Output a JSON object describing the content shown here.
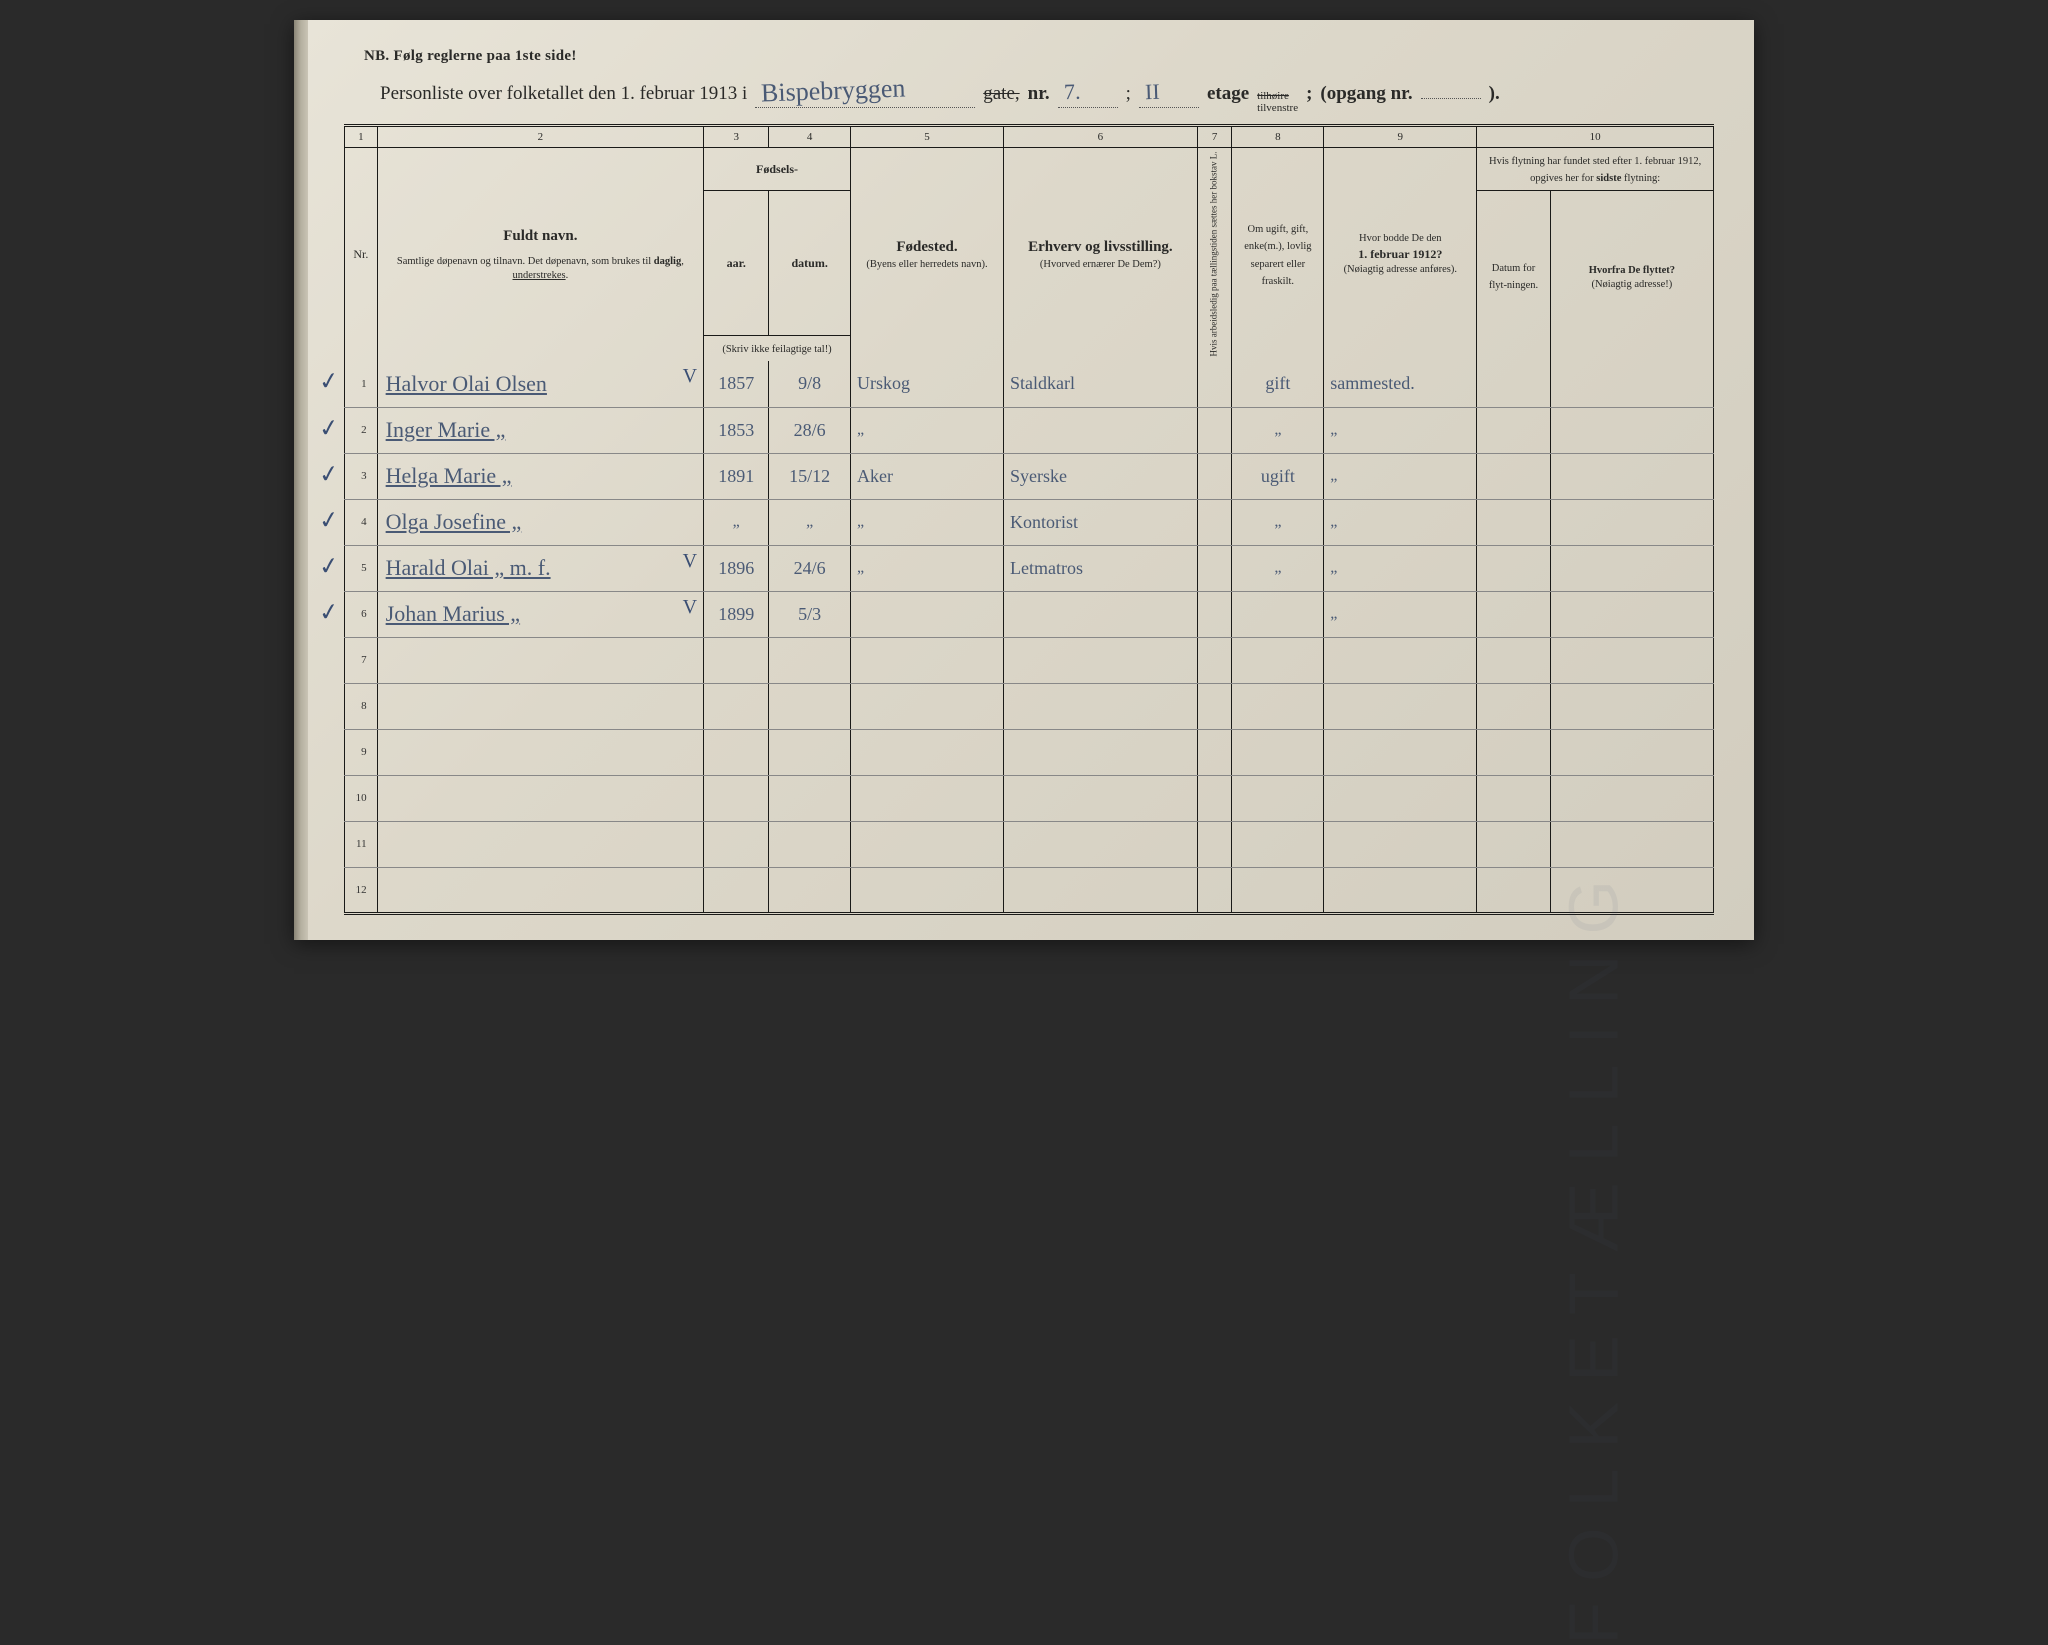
{
  "nb": "NB.  Følg reglerne paa 1ste side!",
  "title": {
    "pre": "Personliste over folketallet den 1. februar 1913 i",
    "street_hand": "Bispebryggen",
    "gate": "gate,",
    "nr_label": "nr.",
    "nr_hand": "7.",
    "semi": ";",
    "etage_hand": "II",
    "etage_label": "etage",
    "side_top": "tilhøire",
    "side_bot": "tilvenstre",
    "opgang": "(opgang nr.",
    "opgang_close": ")."
  },
  "colnos": [
    "1",
    "2",
    "3",
    "4",
    "5",
    "6",
    "7",
    "8",
    "9",
    "10"
  ],
  "headers": {
    "nr": "Nr.",
    "name_big": "Fuldt navn.",
    "name_sub": "Samtlige døpenavn og tilnavn. Det døpenavn, som brukes til daglig, understrekes.",
    "fodsels": "Fødsels-",
    "aar": "aar.",
    "datum": "datum.",
    "aar_sub": "(Skriv ikke feilagtige tal!)",
    "fodested_big": "Fødested.",
    "fodested_sub": "(Byens eller herredets navn).",
    "erhverv_big": "Erhverv og livsstilling.",
    "erhverv_sub": "(Hvorved ernærer De Dem?)",
    "col7": "Hvis arbeidsledig paa tællingstiden sættes her bokstav L.",
    "col8": "Om ugift, gift, enke(m.), lovlig separert eller fraskilt.",
    "col9_a": "Hvor bodde De den",
    "col9_b": "1. februar 1912?",
    "col9_c": "(Nøiagtig adresse anføres).",
    "col10_top": "Hvis flytning har fundet sted efter 1. februar 1912, opgives her for sidste flytning:",
    "col10a": "Datum for flyt-ningen.",
    "col10b_a": "Hvorfra De flyttet?",
    "col10b_b": "(Nøiagtig adresse!)"
  },
  "rows": [
    {
      "nr": "1",
      "check": true,
      "name": "Halvor Olai Olsen",
      "name_mark": "V",
      "aar": "1857",
      "dat": "9/8",
      "sted": "Urskog",
      "erhv": "Staldkarl",
      "mar": "gift",
      "addr": "sammested."
    },
    {
      "nr": "2",
      "check": true,
      "name": "Inger Marie     „",
      "aar": "1853",
      "dat": "28/6",
      "sted": "„",
      "erhv": "",
      "mar": "„",
      "addr": "„"
    },
    {
      "nr": "3",
      "check": true,
      "name": "Helga Marie     „",
      "aar": "1891",
      "dat": "15/12",
      "sted": "Aker",
      "erhv": "Syerske",
      "mar": "ugift",
      "addr": "„"
    },
    {
      "nr": "4",
      "check": true,
      "name": "Olga Josefine    „",
      "aar": "„",
      "dat": "„",
      "sted": "„",
      "erhv": "Kontorist",
      "mar": "„",
      "addr": "„"
    },
    {
      "nr": "5",
      "check": true,
      "name": "Harald Olai     „   m. f.",
      "name_mark": "V",
      "aar": "1896",
      "dat": "24/6",
      "sted": "„",
      "erhv": "Letmatros",
      "mar": "„",
      "addr": "„"
    },
    {
      "nr": "6",
      "check": true,
      "name": "Johan Marius   „",
      "name_mark": "V",
      "aar": "1899",
      "dat": "5/3",
      "sted": "",
      "erhv": "",
      "mar": "",
      "addr": "„"
    },
    {
      "nr": "7"
    },
    {
      "nr": "8"
    },
    {
      "nr": "9"
    },
    {
      "nr": "10"
    },
    {
      "nr": "11"
    },
    {
      "nr": "12"
    }
  ],
  "colors": {
    "paper": "#e0dbcd",
    "ink_print": "#1a1a18",
    "ink_hand": "#4a5a75",
    "rule": "#888"
  }
}
